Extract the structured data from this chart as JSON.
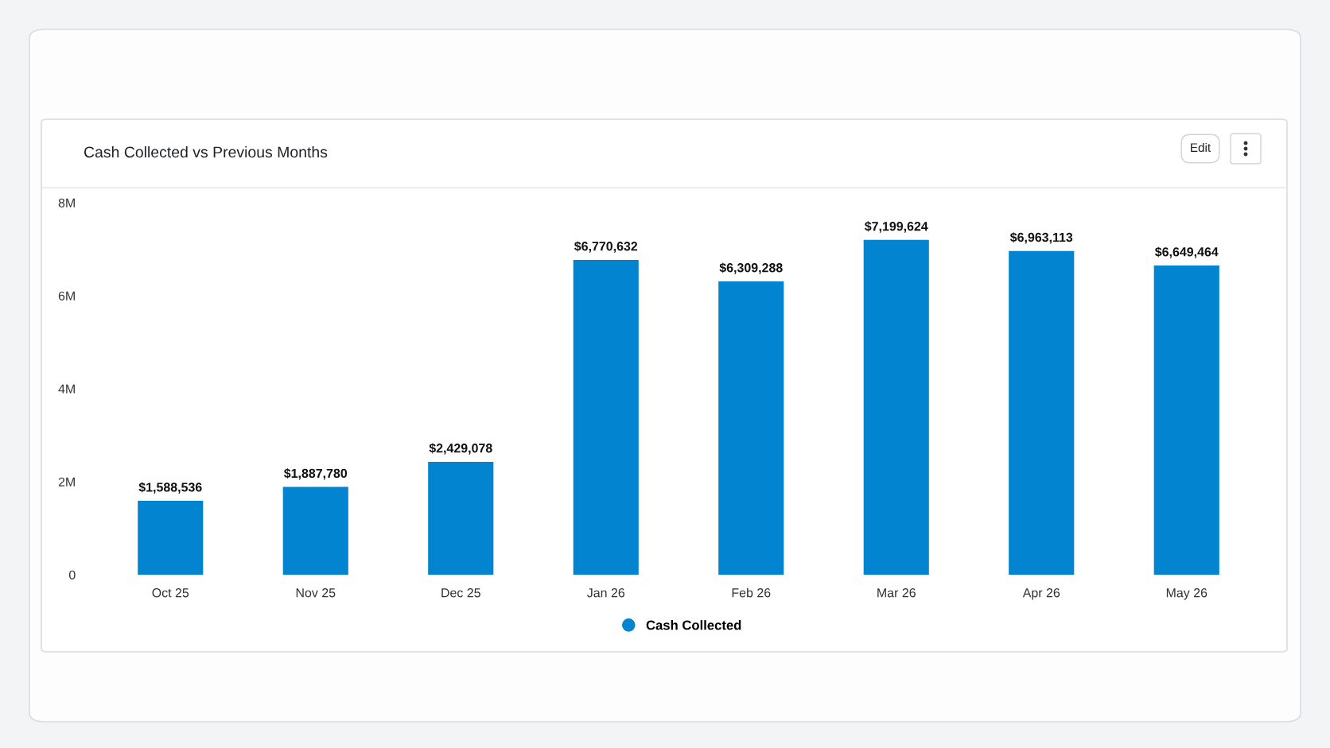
{
  "chart_data": {
    "type": "bar",
    "title": "Cash Collected vs Previous Months",
    "categories": [
      "Oct 25",
      "Nov 25",
      "Dec 25",
      "Jan 26",
      "Feb 26",
      "Mar 26",
      "Apr 26",
      "May 26"
    ],
    "series": [
      {
        "name": "Cash Collected",
        "color": "#0284d0",
        "values": [
          1588536,
          1887780,
          2429078,
          6770632,
          6309288,
          7199624,
          6963113,
          6649464
        ],
        "value_labels": [
          "$1,588,536",
          "$1,887,780",
          "$2,429,078",
          "$6,770,632",
          "$6,309,288",
          "$7,199,624",
          "$6,963,113",
          "$6,649,464"
        ]
      }
    ],
    "ylim": [
      0,
      8000000
    ],
    "yticks": [
      {
        "value": 0,
        "label": "0"
      },
      {
        "value": 2000000,
        "label": "2M"
      },
      {
        "value": 4000000,
        "label": "4M"
      },
      {
        "value": 6000000,
        "label": "6M"
      },
      {
        "value": 8000000,
        "label": "8M"
      }
    ],
    "grid": false,
    "legend": "bottom",
    "annotations": [
      "Edit"
    ]
  }
}
